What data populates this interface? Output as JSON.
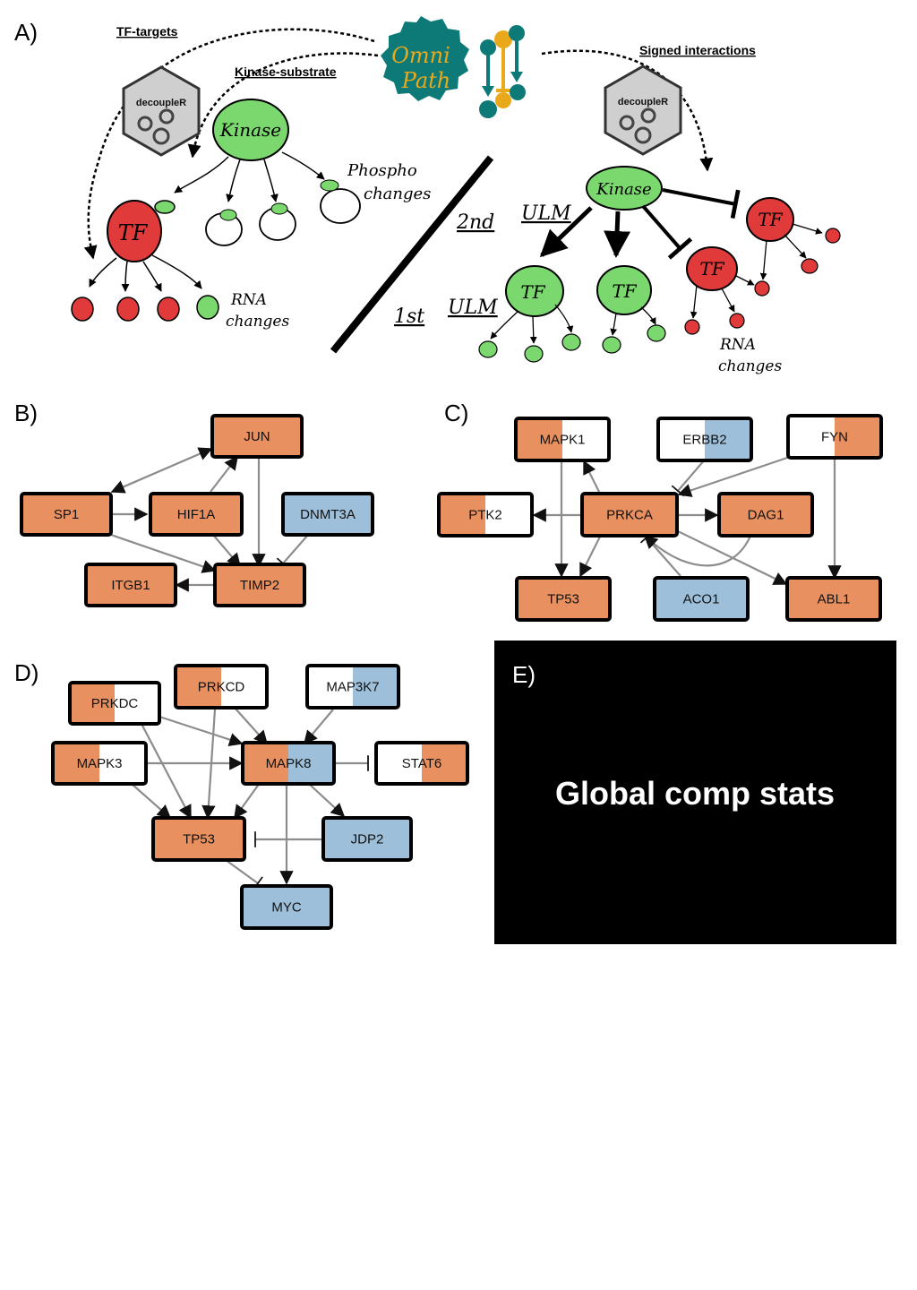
{
  "colors": {
    "orange": "#E8905F",
    "blue": "#9DBFD9",
    "white": "#FFFFFF",
    "green": "#7BD86E",
    "red": "#E03A3A",
    "teal": "#0E7A78",
    "gold": "#E9A91A",
    "edge": "#8C8C8C"
  },
  "panel_a": {
    "label": "A)",
    "tf_targets_label": "TF-targets",
    "kinase_substrate_label": "Kinase-substrate",
    "signed_interactions_label": "Signed interactions",
    "decoupler_left": "decoupleR",
    "decoupler_right": "decoupleR",
    "omni_text_1": "Omni",
    "omni_text_2": "Path",
    "kinase_left": "Kinase",
    "kinase_right": "Kinase",
    "tf_left": "TF",
    "phospho_line1": "Phospho",
    "phospho_line2": "changes",
    "rna_left_line1": "RNA",
    "rna_left_line2": "changes",
    "second_label": "2nd",
    "ulm_top": "ULM",
    "first_label": "1st",
    "ulm_bottom": "ULM",
    "tf_green_1": "TF",
    "tf_green_2": "TF",
    "tf_red_mid": "TF",
    "tf_red_right": "TF",
    "rna_right_line1": "RNA",
    "rna_right_line2": "changes"
  },
  "panel_b": {
    "label": "B)",
    "nodes": {
      "JUN": {
        "label": "JUN",
        "fill": [
          "orange"
        ]
      },
      "SP1": {
        "label": "SP1",
        "fill": [
          "orange"
        ]
      },
      "HIF1A": {
        "label": "HIF1A",
        "fill": [
          "orange"
        ]
      },
      "DNMT3A": {
        "label": "DNMT3A",
        "fill": [
          "blue"
        ]
      },
      "ITGB1": {
        "label": "ITGB1",
        "fill": [
          "orange"
        ]
      },
      "TIMP2": {
        "label": "TIMP2",
        "fill": [
          "orange"
        ]
      }
    }
  },
  "panel_c": {
    "label": "C)",
    "nodes": {
      "MAPK1": {
        "label": "MAPK1",
        "fill": [
          "orange",
          "white"
        ]
      },
      "ERBB2": {
        "label": "ERBB2",
        "fill": [
          "white",
          "blue"
        ]
      },
      "FYN": {
        "label": "FYN",
        "fill": [
          "white",
          "orange"
        ]
      },
      "PTK2": {
        "label": "PTK2",
        "fill": [
          "orange",
          "white"
        ]
      },
      "PRKCA": {
        "label": "PRKCA",
        "fill": [
          "orange"
        ]
      },
      "DAG1": {
        "label": "DAG1",
        "fill": [
          "orange"
        ]
      },
      "TP53": {
        "label": "TP53",
        "fill": [
          "orange"
        ]
      },
      "ACO1": {
        "label": "ACO1",
        "fill": [
          "blue"
        ]
      },
      "ABL1": {
        "label": "ABL1",
        "fill": [
          "orange"
        ]
      }
    }
  },
  "panel_d": {
    "label": "D)",
    "nodes": {
      "PRKDC": {
        "label": "PRKDC",
        "fill": [
          "orange",
          "white"
        ]
      },
      "PRKCD": {
        "label": "PRKCD",
        "fill": [
          "orange",
          "white"
        ]
      },
      "MAP3K7": {
        "label": "MAP3K7",
        "fill": [
          "white",
          "blue"
        ]
      },
      "MAPK3": {
        "label": "MAPK3",
        "fill": [
          "orange",
          "white"
        ]
      },
      "MAPK8": {
        "label": "MAPK8",
        "fill": [
          "orange",
          "blue"
        ]
      },
      "STAT6": {
        "label": "STAT6",
        "fill": [
          "white",
          "orange"
        ]
      },
      "TP53": {
        "label": "TP53",
        "fill": [
          "orange"
        ]
      },
      "JDP2": {
        "label": "JDP2",
        "fill": [
          "blue"
        ]
      },
      "MYC": {
        "label": "MYC",
        "fill": [
          "blue"
        ]
      }
    }
  },
  "panel_e": {
    "label": "E)",
    "title": "Global comp stats"
  }
}
